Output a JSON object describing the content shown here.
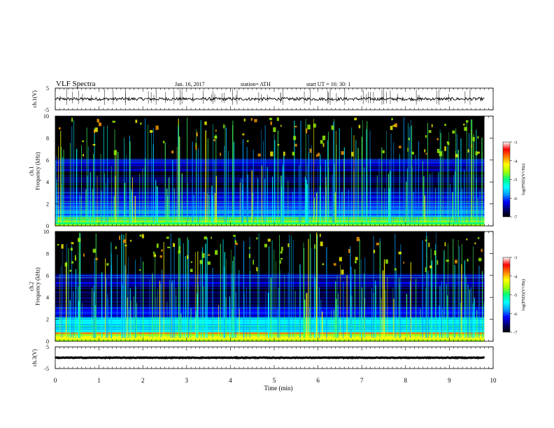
{
  "header": {
    "title": "VLF  Spectra",
    "date": "Jan. 16, 2017",
    "station": "station= ATH",
    "start_ut": "start  UT  =   16: 30: 1"
  },
  "chart_data": [
    {
      "type": "line",
      "panel": "ch1-waveform",
      "ylabel": "ch.1(V)",
      "ylim": [
        -5,
        5
      ],
      "yticks": [
        "5",
        "-5"
      ],
      "trace": {
        "color": "#000000",
        "level": 0,
        "noise_amplitude": 0.7,
        "spike_count": 60,
        "x_range": [
          0,
          9.8
        ]
      }
    },
    {
      "type": "heatmap",
      "panel": "ch1-spectrogram",
      "ylabel": "ch.1\nFrequency (kHz)",
      "ylim": [
        0,
        10
      ],
      "yticks": [
        "0",
        "2",
        "4",
        "6",
        "8",
        "10"
      ],
      "x_range": [
        0,
        9.8
      ],
      "colorbar": {
        "label": "log(PSD)(V²/Hz)",
        "range": [
          -7,
          -3
        ],
        "ticks": [
          "-3",
          "-4",
          "-5",
          "-6",
          "-7"
        ]
      }
    },
    {
      "type": "heatmap",
      "panel": "ch2-spectrogram",
      "ylabel": "ch.2\nFrequency (kHz)",
      "ylim": [
        0,
        10
      ],
      "yticks": [
        "0",
        "2",
        "4",
        "6",
        "8",
        "10"
      ],
      "x_range": [
        0,
        9.8
      ],
      "colorbar": {
        "label": "log(PSD)(V²/Hz)",
        "range": [
          -7,
          -3
        ],
        "ticks": [
          "-3",
          "-4",
          "-5",
          "-6",
          "-7"
        ]
      }
    },
    {
      "type": "line",
      "panel": "ch3-waveform",
      "ylabel": "ch.3(V)",
      "ylim": [
        -5,
        5
      ],
      "yticks": [
        "5",
        "-5"
      ],
      "trace": {
        "color": "#000000",
        "level": 0,
        "noise_amplitude": 0.15,
        "spike_count": 0,
        "x_range": [
          0,
          9.8
        ]
      }
    }
  ],
  "xaxis": {
    "label": "Time  (min)",
    "range": [
      0,
      10
    ],
    "ticks": [
      "0",
      "1",
      "2",
      "3",
      "4",
      "5",
      "6",
      "7",
      "8",
      "9",
      "10"
    ]
  },
  "colormap": [
    "#000000",
    "#000070",
    "#0000ff",
    "#00a0ff",
    "#00ffff",
    "#00ff80",
    "#a0ff00",
    "#ffff00",
    "#ff8000",
    "#ff0000",
    "#ffffff"
  ]
}
